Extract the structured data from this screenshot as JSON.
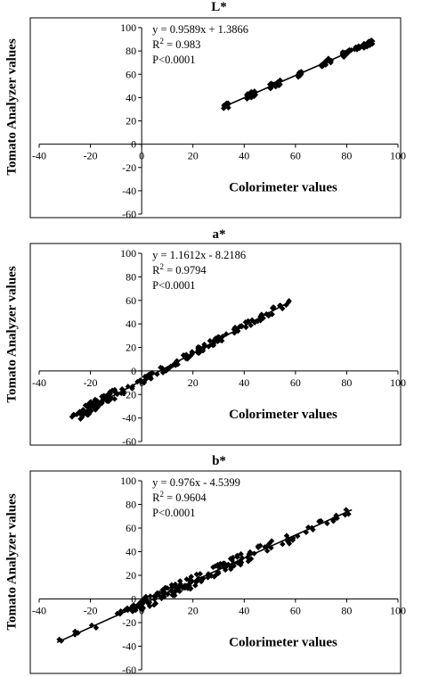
{
  "chart_data": [
    {
      "type": "scatter",
      "title": "L*",
      "xlabel": "Colorimeter values",
      "ylabel": "Tomato Analyzer values",
      "xlim": [
        -40,
        100
      ],
      "ylim": [
        -60,
        100
      ],
      "x_ticks": [
        -40,
        -20,
        0,
        20,
        40,
        60,
        80,
        100
      ],
      "y_ticks": [
        -60,
        -40,
        -20,
        0,
        20,
        40,
        60,
        80,
        100
      ],
      "annotations": [
        "y = 0.9589x + 1.3866",
        "R² = 0.983",
        "P<0.0001"
      ],
      "trendline": {
        "slope": 0.9589,
        "intercept": 1.3866,
        "x_range": [
          32,
          91
        ]
      },
      "clusters": [
        {
          "x": [
            32,
            34
          ],
          "spread": 2.5,
          "count": 8
        },
        {
          "x": [
            41,
            45
          ],
          "spread": 2.5,
          "count": 22
        },
        {
          "x": [
            50,
            54
          ],
          "spread": 2.5,
          "count": 22
        },
        {
          "x": [
            61,
            63
          ],
          "spread": 2.5,
          "count": 10
        },
        {
          "x": [
            70,
            74
          ],
          "spread": 2.5,
          "count": 18
        },
        {
          "x": [
            78,
            82
          ],
          "spread": 2.5,
          "count": 14
        },
        {
          "x": [
            83,
            91
          ],
          "spread": 2.0,
          "count": 24
        }
      ],
      "grid": false,
      "legend": "none"
    },
    {
      "type": "scatter",
      "title": "a*",
      "xlabel": "Colorimeter values",
      "ylabel": "Tomato Analyzer values",
      "xlim": [
        -40,
        100
      ],
      "ylim": [
        -60,
        100
      ],
      "x_ticks": [
        -40,
        -20,
        0,
        20,
        40,
        60,
        80,
        100
      ],
      "y_ticks": [
        -60,
        -40,
        -20,
        0,
        20,
        40,
        60,
        80,
        100
      ],
      "annotations": [
        "y = 1.1612x - 8.2186",
        "R² = 0.9794",
        "P<0.0001"
      ],
      "trendline": {
        "slope": 1.1612,
        "intercept": -8.2186,
        "x_range": [
          -27,
          58
        ]
      },
      "clusters": [
        {
          "x": [
            -28,
            -24
          ],
          "spread": 4.0,
          "count": 6
        },
        {
          "x": [
            -24,
            -10
          ],
          "spread": 5.0,
          "count": 60
        },
        {
          "x": [
            -10,
            5
          ],
          "spread": 3.0,
          "count": 22
        },
        {
          "x": [
            5,
            20
          ],
          "spread": 3.0,
          "count": 30
        },
        {
          "x": [
            20,
            40
          ],
          "spread": 3.0,
          "count": 40
        },
        {
          "x": [
            40,
            58
          ],
          "spread": 3.0,
          "count": 26
        }
      ],
      "grid": false,
      "legend": "none"
    },
    {
      "type": "scatter",
      "title": "b*",
      "xlabel": "Colorimeter values",
      "ylabel": "Tomato Analyzer values",
      "xlim": [
        -40,
        100
      ],
      "ylim": [
        -60,
        100
      ],
      "x_ticks": [
        -40,
        -20,
        0,
        20,
        40,
        60,
        80,
        100
      ],
      "y_ticks": [
        -60,
        -40,
        -20,
        0,
        20,
        40,
        60,
        80,
        100
      ],
      "annotations": [
        "y = 0.976x - 4.5399",
        "R² = 0.9604",
        "P<0.0001"
      ],
      "trendline": {
        "slope": 0.976,
        "intercept": -4.5399,
        "x_range": [
          -33,
          82
        ]
      },
      "clusters": [
        {
          "x": [
            -33,
            -16
          ],
          "spread": 2.5,
          "count": 8
        },
        {
          "x": [
            -12,
            0
          ],
          "spread": 3.0,
          "count": 22
        },
        {
          "x": [
            0,
            20
          ],
          "spread": 5.5,
          "count": 70
        },
        {
          "x": [
            20,
            40
          ],
          "spread": 5.0,
          "count": 50
        },
        {
          "x": [
            40,
            60
          ],
          "spread": 5.0,
          "count": 24
        },
        {
          "x": [
            60,
            82
          ],
          "spread": 3.0,
          "count": 16
        }
      ],
      "grid": false,
      "legend": "none"
    }
  ]
}
